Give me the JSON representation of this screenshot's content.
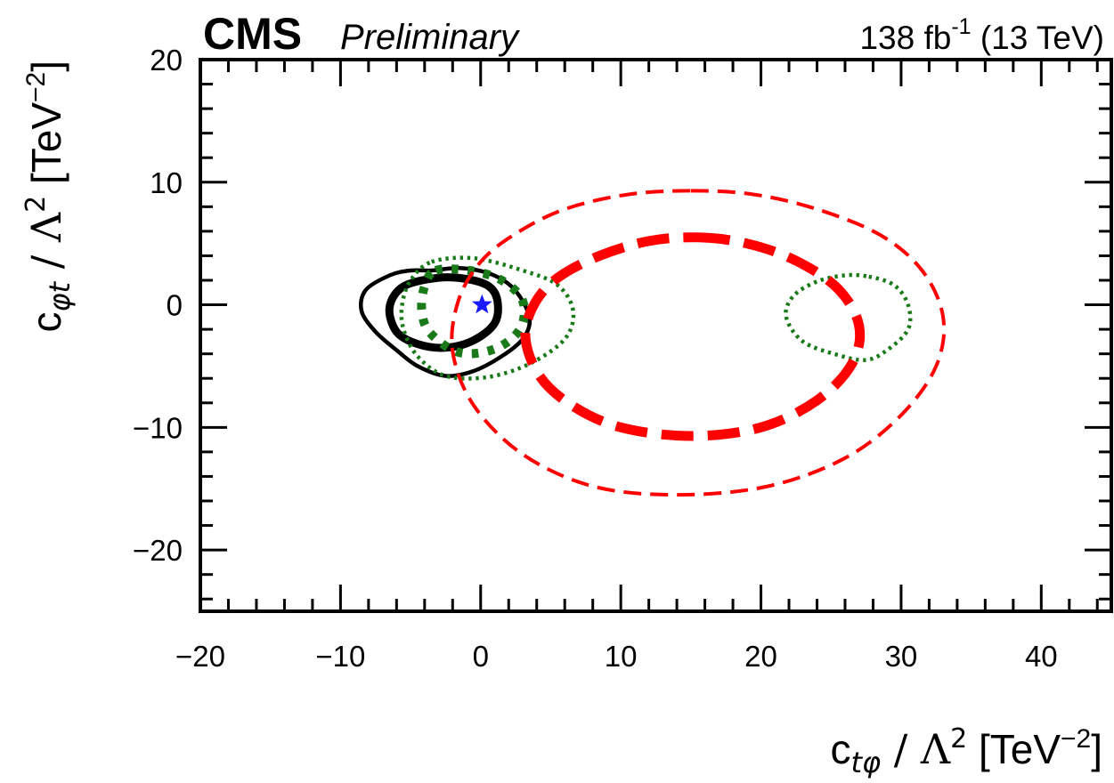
{
  "chart_data": {
    "type": "contour",
    "header": {
      "experiment": "CMS",
      "status": "Preliminary",
      "lumi_value": "138",
      "lumi_unit": "fb",
      "lumi_exp": "-1",
      "energy": "(13 TeV)"
    },
    "xaxis": {
      "label_main": "c",
      "label_sub": "tφ",
      "label_rest": " / Λ",
      "label_sup": "2",
      "label_unit": " [TeV",
      "label_unit_sup": "−2",
      "label_close": "]",
      "range": [
        -20,
        45
      ],
      "major_ticks": [
        -20,
        -10,
        0,
        10,
        20,
        30,
        40
      ],
      "tick_labels": [
        "−20",
        "−10",
        "0",
        "10",
        "20",
        "30",
        "40"
      ]
    },
    "yaxis": {
      "label_main": "c",
      "label_sub": "φt",
      "label_rest": " / Λ",
      "label_sup": "2",
      "label_unit": " [TeV",
      "label_unit_sup": "−2",
      "label_close": "]",
      "range": [
        -25,
        20
      ],
      "major_ticks": [
        -20,
        -10,
        0,
        10,
        20
      ],
      "tick_labels": [
        "−20",
        "−10",
        "0",
        "10",
        "20"
      ]
    },
    "best_fit": {
      "x": 0.1,
      "y": 0.0,
      "color": "#1a1aff",
      "marker": "star"
    },
    "contours": [
      {
        "name": "black-outer",
        "color": "#000000",
        "style": "solid",
        "width": 4.5,
        "points": [
          [
            -3.5,
            2.8
          ],
          [
            -1.5,
            3.0
          ],
          [
            0.5,
            2.6
          ],
          [
            2.0,
            1.7
          ],
          [
            3.0,
            0.3
          ],
          [
            3.5,
            -1.3
          ],
          [
            3.0,
            -2.8
          ],
          [
            1.5,
            -4.2
          ],
          [
            -0.5,
            -5.4
          ],
          [
            -2.5,
            -5.8
          ],
          [
            -4.5,
            -5.0
          ],
          [
            -6.0,
            -3.7
          ],
          [
            -7.5,
            -2.2
          ],
          [
            -8.5,
            -0.5
          ],
          [
            -8.2,
            1.2
          ],
          [
            -6.5,
            2.4
          ],
          [
            -5.0,
            2.8
          ]
        ]
      },
      {
        "name": "black-inner",
        "color": "#000000",
        "style": "solid",
        "width": 9,
        "points": [
          [
            -3.0,
            2.2
          ],
          [
            -1.0,
            2.1
          ],
          [
            0.6,
            1.5
          ],
          [
            1.2,
            0.3
          ],
          [
            1.0,
            -1.5
          ],
          [
            -0.5,
            -2.9
          ],
          [
            -2.5,
            -3.5
          ],
          [
            -4.5,
            -3.2
          ],
          [
            -6.0,
            -2.2
          ],
          [
            -6.5,
            -0.2
          ],
          [
            -5.5,
            1.5
          ]
        ]
      },
      {
        "name": "green-outer",
        "color": "#1a7a1a",
        "style": "dotted",
        "width": 4.5,
        "points": [
          [
            -3.5,
            3.5
          ],
          [
            -0.5,
            3.8
          ],
          [
            3.0,
            2.8
          ],
          [
            5.5,
            1.6
          ],
          [
            6.6,
            -0.5
          ],
          [
            6.0,
            -2.8
          ],
          [
            3.5,
            -4.8
          ],
          [
            0.5,
            -5.9
          ],
          [
            -2.5,
            -5.8
          ],
          [
            -4.5,
            -4.2
          ],
          [
            -5.5,
            -2.0
          ],
          [
            -5.6,
            0.0
          ],
          [
            -5.0,
            2.0
          ]
        ]
      },
      {
        "name": "green-inner",
        "color": "#1a7a1a",
        "style": "dotted",
        "width": 10,
        "points": [
          [
            -3.2,
            2.8
          ],
          [
            -0.8,
            2.8
          ],
          [
            1.5,
            2.0
          ],
          [
            3.0,
            0.3
          ],
          [
            2.8,
            -2.0
          ],
          [
            1.0,
            -3.6
          ],
          [
            -1.5,
            -3.9
          ],
          [
            -3.6,
            -2.3
          ],
          [
            -4.2,
            -0.5
          ],
          [
            -4.0,
            1.5
          ]
        ]
      },
      {
        "name": "green-right",
        "color": "#1a7a1a",
        "style": "dotted",
        "width": 4.5,
        "points": [
          [
            27.7,
            2.3
          ],
          [
            29.5,
            1.6
          ],
          [
            30.5,
            0.0
          ],
          [
            30.5,
            -2.0
          ],
          [
            29.0,
            -3.7
          ],
          [
            27.5,
            -4.5
          ],
          [
            25.5,
            -4.1
          ],
          [
            23.0,
            -3.0
          ],
          [
            21.8,
            -1.0
          ],
          [
            22.3,
            0.7
          ],
          [
            24.0,
            1.9
          ],
          [
            26.0,
            2.4
          ]
        ]
      },
      {
        "name": "red-inner",
        "color": "#ff0000",
        "style": "dashed-thick",
        "width": 11,
        "points": [
          [
            15.5,
            5.5
          ],
          [
            19.0,
            5.0
          ],
          [
            22.5,
            3.6
          ],
          [
            25.5,
            1.3
          ],
          [
            27.0,
            -1.7
          ],
          [
            26.5,
            -4.8
          ],
          [
            24.0,
            -7.8
          ],
          [
            20.0,
            -10.0
          ],
          [
            15.0,
            -10.7
          ],
          [
            10.0,
            -10.0
          ],
          [
            6.5,
            -8.2
          ],
          [
            4.2,
            -5.8
          ],
          [
            3.2,
            -2.7
          ],
          [
            3.8,
            0.0
          ],
          [
            5.5,
            2.2
          ],
          [
            8.5,
            4.0
          ],
          [
            12.0,
            5.2
          ]
        ]
      },
      {
        "name": "red-outer",
        "color": "#ff0000",
        "style": "dashed-thin",
        "width": 4,
        "points": [
          [
            15.0,
            9.3
          ],
          [
            19.5,
            9.0
          ],
          [
            24.0,
            7.8
          ],
          [
            28.5,
            5.7
          ],
          [
            31.5,
            2.8
          ],
          [
            33.0,
            -1.0
          ],
          [
            32.5,
            -5.0
          ],
          [
            30.0,
            -9.0
          ],
          [
            26.0,
            -12.5
          ],
          [
            20.5,
            -14.8
          ],
          [
            14.0,
            -15.5
          ],
          [
            8.0,
            -14.8
          ],
          [
            3.0,
            -12.2
          ],
          [
            -0.5,
            -8.2
          ],
          [
            -2.0,
            -3.8
          ],
          [
            -1.6,
            0.3
          ],
          [
            0.0,
            3.5
          ],
          [
            2.5,
            5.8
          ],
          [
            6.0,
            7.8
          ],
          [
            10.5,
            9.0
          ]
        ]
      }
    ]
  }
}
